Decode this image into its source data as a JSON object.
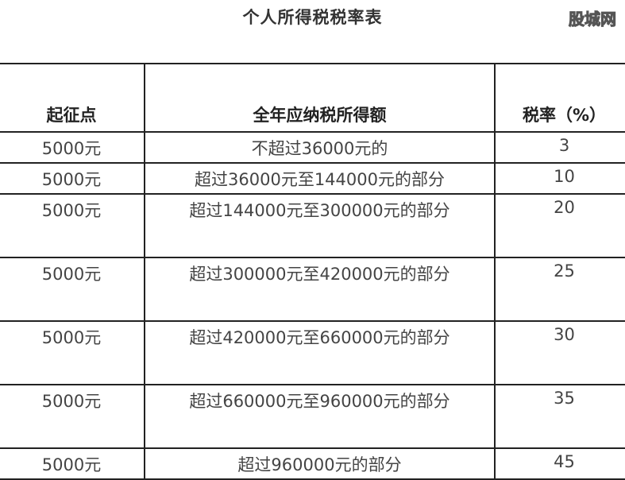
{
  "title": "个人所得税税率表",
  "watermark": "股城网",
  "table": {
    "headers": [
      "起征点",
      "全年应纳税所得额",
      "税率（%）"
    ],
    "rows": [
      {
        "threshold": "5000元",
        "income": "不超过36000元的",
        "rate": "3"
      },
      {
        "threshold": "5000元",
        "income": "超过36000元至144000元的部分",
        "rate": "10"
      },
      {
        "threshold": "5000元",
        "income": "超过144000元至300000元的部分",
        "rate": "20"
      },
      {
        "threshold": "5000元",
        "income": "超过300000元至420000元的部分",
        "rate": "25"
      },
      {
        "threshold": "5000元",
        "income": "超过420000元至660000元的部分",
        "rate": "30"
      },
      {
        "threshold": "5000元",
        "income": "超过660000元至960000元的部分",
        "rate": "35"
      },
      {
        "threshold": "5000元",
        "income": "超过960000元的部分",
        "rate": "45"
      }
    ]
  }
}
